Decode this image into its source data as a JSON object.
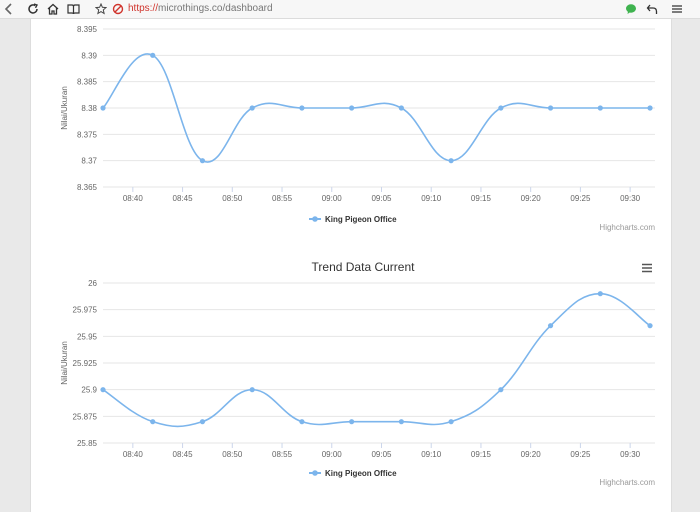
{
  "browser": {
    "url_scheme": "https://",
    "url_rest": "microthings.co/dashboard",
    "icons": [
      "back-chevron-icon",
      "reload-icon",
      "home-icon",
      "reading-view-icon",
      "favorite-star-icon",
      "not-secure-icon",
      "chat-icon",
      "undo-icon",
      "menu-icon"
    ]
  },
  "colors": {
    "series": "#7cb5ec",
    "grid": "#e6e6e6",
    "axis_text": "#666666",
    "credits": "#999999"
  },
  "charts": [
    {
      "title": "",
      "credits": "Highcharts.com",
      "legend": {
        "label": "King Pigeon Office",
        "placement": "bottom-center"
      }
    },
    {
      "title": "Trend Data Current",
      "credits": "Highcharts.com",
      "legend": {
        "label": "King Pigeon Office",
        "placement": "bottom-center"
      },
      "context_menu_icon": "hamburger-menu-icon"
    }
  ],
  "chart_data": [
    {
      "type": "line",
      "title": "",
      "ylabel": "Nilai/Ukuran",
      "xlabel": "",
      "x_ticks": [
        "08:40",
        "08:45",
        "08:50",
        "08:55",
        "09:00",
        "09:05",
        "09:10",
        "09:15",
        "09:20",
        "09:25",
        "09:30"
      ],
      "y_ticks": [
        "8.365",
        "8.37",
        "8.375",
        "8.38",
        "8.385",
        "8.39",
        "8.395"
      ],
      "ylim": [
        8.365,
        8.395
      ],
      "series": [
        {
          "name": "King Pigeon Office",
          "x": [
            "08:37",
            "08:42",
            "08:47",
            "08:52",
            "08:57",
            "09:02",
            "09:07",
            "09:12",
            "09:17",
            "09:22",
            "09:27",
            "09:32"
          ],
          "y": [
            8.38,
            8.39,
            8.37,
            8.38,
            8.38,
            8.38,
            8.38,
            8.37,
            8.38,
            8.38,
            8.38,
            8.38
          ]
        }
      ],
      "grid": true,
      "legend_position": "bottom-center"
    },
    {
      "type": "line",
      "title": "Trend Data Current",
      "ylabel": "Nilai/Ukuran",
      "xlabel": "",
      "x_ticks": [
        "08:40",
        "08:45",
        "08:50",
        "08:55",
        "09:00",
        "09:05",
        "09:10",
        "09:15",
        "09:20",
        "09:25",
        "09:30"
      ],
      "y_ticks": [
        "25.85",
        "25.875",
        "25.9",
        "25.925",
        "25.95",
        "25.975",
        "26"
      ],
      "ylim": [
        25.85,
        26
      ],
      "series": [
        {
          "name": "King Pigeon Office",
          "x": [
            "08:37",
            "08:42",
            "08:47",
            "08:52",
            "08:57",
            "09:02",
            "09:07",
            "09:12",
            "09:17",
            "09:22",
            "09:27",
            "09:32"
          ],
          "y": [
            25.9,
            25.87,
            25.87,
            25.9,
            25.87,
            25.87,
            25.87,
            25.87,
            25.9,
            25.96,
            25.99,
            25.96
          ]
        }
      ],
      "grid": true,
      "legend_position": "bottom-center"
    }
  ]
}
